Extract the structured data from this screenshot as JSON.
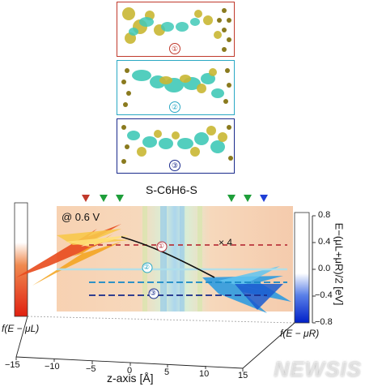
{
  "figure": {
    "title": "S-C6H6-S",
    "voltage": "@ 0.6 V",
    "scale_note": "× 4",
    "panels": [
      {
        "index": "①",
        "color": "#c0392b"
      },
      {
        "index": "②",
        "color": "#2aa8c4"
      },
      {
        "index": "③",
        "color": "#1a2a8c"
      }
    ],
    "curve_labels": [
      "①",
      "②",
      "③"
    ],
    "x_axis": {
      "label": "z-axis [Å]",
      "ticks": [
        "−15",
        "−10",
        "−5",
        "0",
        "5",
        "10",
        "15"
      ]
    },
    "y_axis": {
      "label": "E−(μL+μR)/2 [eV]",
      "ticks": [
        "0.8",
        "0.4",
        "0.0",
        "−0.4",
        "−0.8"
      ]
    },
    "left_bar_label": "f(E − μL)",
    "right_bar_label": "f(E − μR)",
    "watermark": "NEWSIS",
    "markers": {
      "left": [
        "#c0392b",
        "#1e9e3a",
        "#1e9e3a"
      ],
      "right": [
        "#1e9e3a",
        "#1e9e3a",
        "#1f3fd6"
      ]
    }
  }
}
